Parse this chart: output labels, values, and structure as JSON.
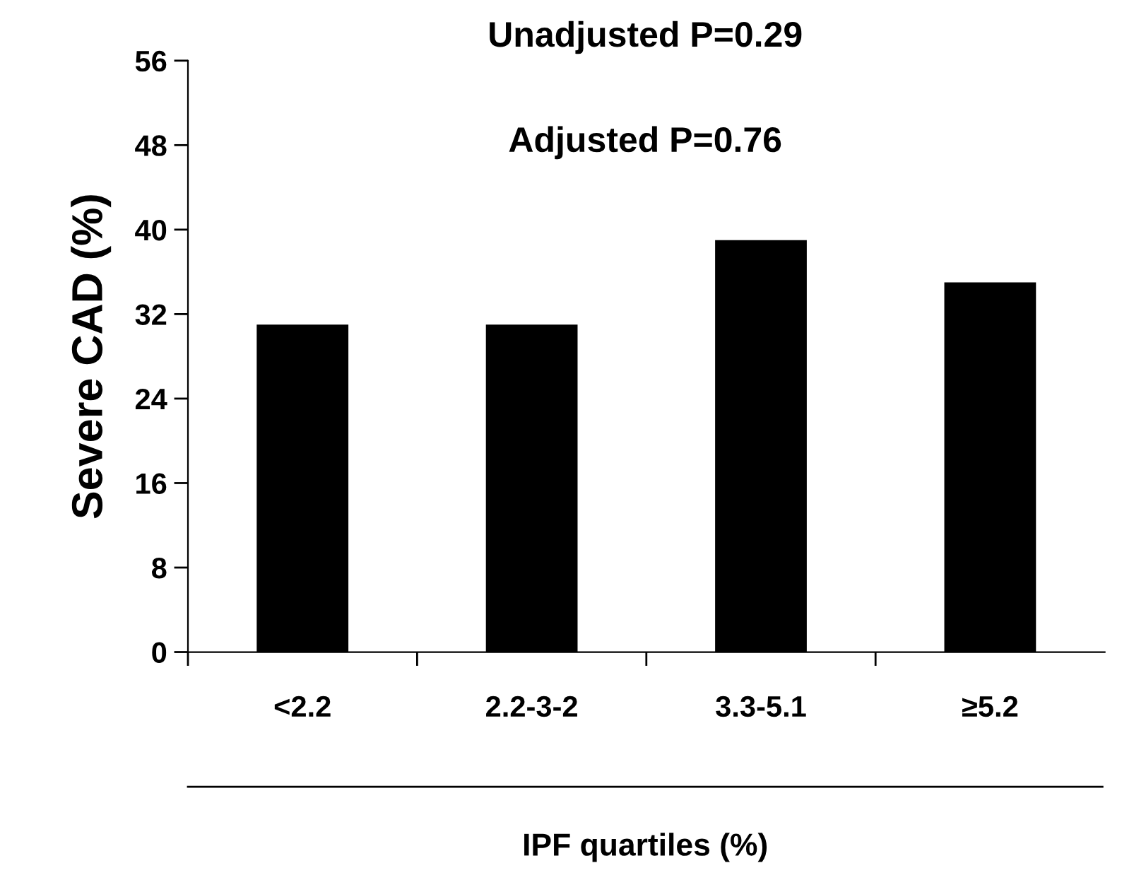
{
  "chart_data": {
    "type": "bar",
    "xlabel": "IPF quartiles (%)",
    "ylabel": "Severe CAD (%)",
    "categories": [
      "<2.2",
      "2.2-3-2",
      "3.3-5.1",
      "≥5.2"
    ],
    "values": [
      31,
      31,
      39,
      35
    ],
    "color": "#000000",
    "ylim": [
      0,
      56
    ],
    "yticks": [
      0,
      8,
      16,
      24,
      32,
      40,
      48,
      56
    ],
    "grid": false,
    "annotations": [
      "Unadjusted P=0.29",
      "Adjusted P=0.76"
    ]
  }
}
